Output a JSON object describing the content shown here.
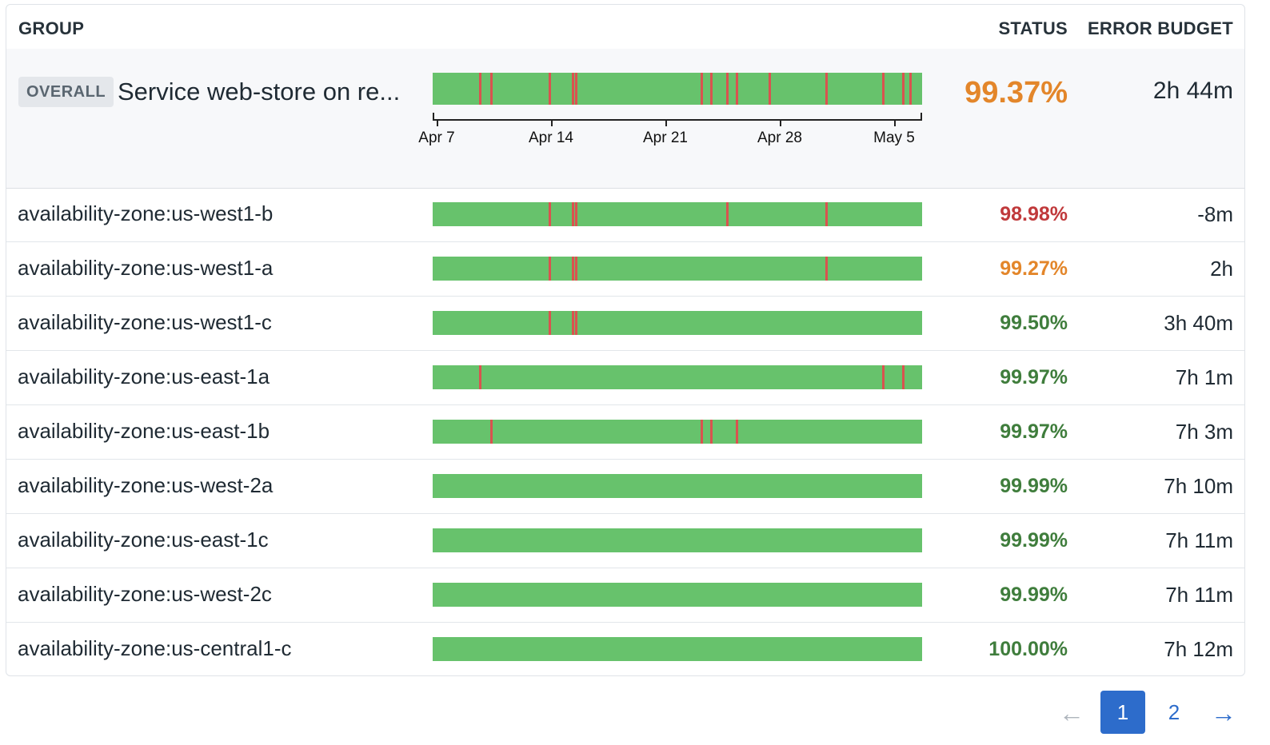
{
  "header": {
    "group": "GROUP",
    "status": "STATUS",
    "error_budget": "ERROR BUDGET"
  },
  "overall": {
    "badge": "OVERALL",
    "name": "Service web-store on re...",
    "status": "99.37%",
    "status_color": "#e3862a",
    "error_budget": "2h 44m",
    "incidents": [
      0.095,
      0.118,
      0.237,
      0.285,
      0.291,
      0.548,
      0.567,
      0.599,
      0.619,
      0.686,
      0.803,
      0.918,
      0.959,
      0.974
    ],
    "axis_ticks": [
      "Apr 7",
      "Apr 14",
      "Apr 21",
      "Apr 28",
      "May 5"
    ]
  },
  "colors": {
    "bar_green": "#67c26c",
    "incident_red": "#d9534f",
    "status_red": "#c0393b",
    "status_orange": "#e3862a",
    "status_green": "#3f7d3c",
    "page_active": "#2d6ccb"
  },
  "rows": [
    {
      "name": "availability-zone:us-west1-b",
      "status": "98.98%",
      "status_color": "#c0393b",
      "error_budget": "-8m",
      "incidents": [
        0.237,
        0.285,
        0.291,
        0.599,
        0.803
      ]
    },
    {
      "name": "availability-zone:us-west1-a",
      "status": "99.27%",
      "status_color": "#e3862a",
      "error_budget": "2h",
      "incidents": [
        0.237,
        0.285,
        0.291,
        0.803
      ]
    },
    {
      "name": "availability-zone:us-west1-c",
      "status": "99.50%",
      "status_color": "#3f7d3c",
      "error_budget": "3h 40m",
      "incidents": [
        0.237,
        0.285,
        0.291
      ]
    },
    {
      "name": "availability-zone:us-east-1a",
      "status": "99.97%",
      "status_color": "#3f7d3c",
      "error_budget": "7h 1m",
      "incidents": [
        0.095,
        0.918,
        0.959
      ]
    },
    {
      "name": "availability-zone:us-east-1b",
      "status": "99.97%",
      "status_color": "#3f7d3c",
      "error_budget": "7h 3m",
      "incidents": [
        0.118,
        0.548,
        0.567,
        0.619
      ]
    },
    {
      "name": "availability-zone:us-west-2a",
      "status": "99.99%",
      "status_color": "#3f7d3c",
      "error_budget": "7h 10m",
      "incidents": []
    },
    {
      "name": "availability-zone:us-east-1c",
      "status": "99.99%",
      "status_color": "#3f7d3c",
      "error_budget": "7h 11m",
      "incidents": []
    },
    {
      "name": "availability-zone:us-west-2c",
      "status": "99.99%",
      "status_color": "#3f7d3c",
      "error_budget": "7h 11m",
      "incidents": []
    },
    {
      "name": "availability-zone:us-central1-c",
      "status": "100.00%",
      "status_color": "#3f7d3c",
      "error_budget": "7h 12m",
      "incidents": []
    }
  ],
  "pagination": {
    "prev_icon": "arrow-left-icon",
    "pages": [
      "1",
      "2"
    ],
    "current": "1",
    "next_icon": "arrow-right-icon"
  }
}
